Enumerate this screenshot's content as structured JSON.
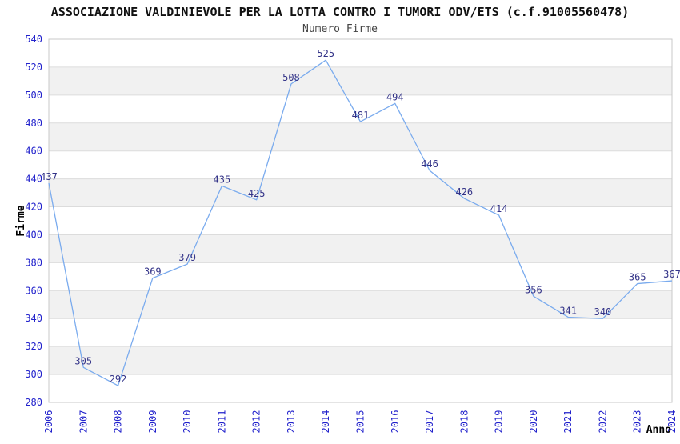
{
  "chart_data": {
    "type": "line",
    "title": "ASSOCIAZIONE VALDINIEVOLE PER LA LOTTA CONTRO I TUMORI ODV/ETS (c.f.91005560478)",
    "subtitle": "Numero Firme",
    "xlabel": "Anno",
    "ylabel": "Firme",
    "categories": [
      "2006",
      "2007",
      "2008",
      "2009",
      "2010",
      "2011",
      "2012",
      "2013",
      "2014",
      "2015",
      "2016",
      "2017",
      "2018",
      "2019",
      "2020",
      "2021",
      "2022",
      "2023",
      "2024"
    ],
    "values": [
      437,
      305,
      292,
      369,
      379,
      435,
      425,
      508,
      525,
      481,
      494,
      446,
      426,
      414,
      356,
      341,
      340,
      365,
      367
    ],
    "ylim": [
      280,
      540
    ],
    "ytick_step": 20,
    "grid": true,
    "legend_position": "none",
    "band_fill_alternating": true,
    "point_markers": false,
    "colors": {
      "line": "#7aabee",
      "tick_label": "#2222cc",
      "data_label": "#333388",
      "band": "#f1f1f1",
      "gridline": "#dcdcdc",
      "border": "#c9c9c9",
      "title": "#111111",
      "subtitle": "#444444",
      "axis_title": "#000000",
      "background": "#ffffff"
    }
  }
}
